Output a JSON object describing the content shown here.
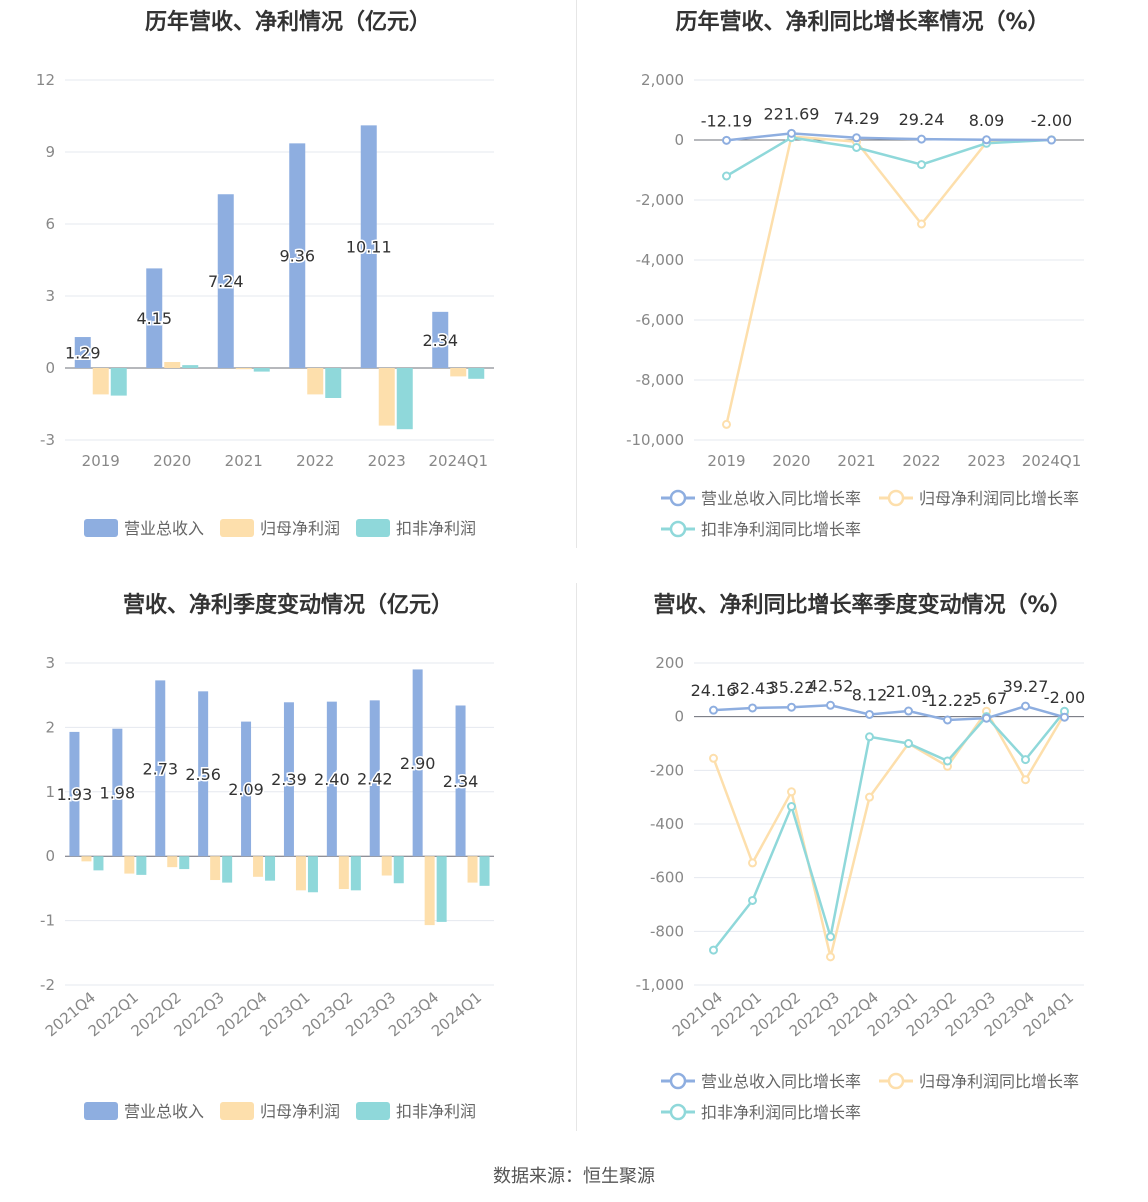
{
  "source_label": "数据来源：恒生聚源",
  "colors": {
    "revenue": "#8eaee0",
    "net_profit": "#fddfac",
    "deducted_profit": "#8fd8da",
    "axis": "#6e7079",
    "grid": "#e5e8ef",
    "label": "#333333",
    "tick": "#888888"
  },
  "chart_data": [
    {
      "id": "annual-values",
      "type": "bar",
      "title": "历年营收、净利情况（亿元）",
      "categories": [
        "2019",
        "2020",
        "2021",
        "2022",
        "2023",
        "2024Q1"
      ],
      "series": [
        {
          "name": "营业总收入",
          "values": [
            1.29,
            4.15,
            7.24,
            9.36,
            10.11,
            2.34
          ],
          "show_labels": true
        },
        {
          "name": "归母净利润",
          "values": [
            -1.1,
            0.25,
            -0.05,
            -1.1,
            -2.4,
            -0.35
          ]
        },
        {
          "name": "扣非净利润",
          "values": [
            -1.15,
            0.12,
            -0.15,
            -1.25,
            -2.55,
            -0.45
          ]
        }
      ],
      "data_labels": [
        "1.29",
        "4.15",
        "7.24",
        "9.36",
        "10.11",
        "2.34"
      ],
      "ylim": [
        -3,
        12
      ],
      "yticks": [
        -3,
        0,
        3,
        6,
        9,
        12
      ],
      "ytick_labels": [
        "-3",
        "0",
        "3",
        "6",
        "9",
        "12"
      ],
      "grid": true,
      "legend_position": "bottom-left"
    },
    {
      "id": "annual-growth",
      "type": "line",
      "title": "历年营收、净利同比增长率情况（%）",
      "categories": [
        "2019",
        "2020",
        "2021",
        "2022",
        "2023",
        "2024Q1"
      ],
      "series": [
        {
          "name": "营业总收入同比增长率",
          "values": [
            -12.19,
            221.69,
            74.29,
            29.24,
            8.09,
            -2.0
          ],
          "show_labels": true
        },
        {
          "name": "归母净利润同比增长率",
          "values": [
            -9480,
            120,
            -60,
            -2800,
            -80,
            10
          ]
        },
        {
          "name": "扣非净利润同比增长率",
          "values": [
            -1200,
            80,
            -250,
            -820,
            -110,
            5
          ]
        }
      ],
      "data_labels": [
        "-12.19",
        "221.69",
        "74.29",
        "29.24",
        "8.09",
        "-2.00"
      ],
      "ylim": [
        -10000,
        2000
      ],
      "yticks": [
        -10000,
        -8000,
        -6000,
        -4000,
        -2000,
        0,
        2000
      ],
      "ytick_labels": [
        "-10,000",
        "-8,000",
        "-6,000",
        "-4,000",
        "-2,000",
        "0",
        "2,000"
      ],
      "grid": true,
      "legend_position": "bottom"
    },
    {
      "id": "quarterly-values",
      "type": "bar",
      "title": "营收、净利季度变动情况（亿元）",
      "categories": [
        "2021Q4",
        "2022Q1",
        "2022Q2",
        "2022Q3",
        "2022Q4",
        "2023Q1",
        "2023Q2",
        "2023Q3",
        "2023Q4",
        "2024Q1"
      ],
      "series": [
        {
          "name": "营业总收入",
          "values": [
            1.93,
            1.98,
            2.73,
            2.56,
            2.09,
            2.39,
            2.4,
            2.42,
            2.9,
            2.34
          ],
          "show_labels": true
        },
        {
          "name": "归母净利润",
          "values": [
            -0.08,
            -0.27,
            -0.17,
            -0.37,
            -0.32,
            -0.53,
            -0.51,
            -0.3,
            -1.07,
            -0.41
          ]
        },
        {
          "name": "扣非净利润",
          "values": [
            -0.22,
            -0.29,
            -0.2,
            -0.41,
            -0.38,
            -0.56,
            -0.53,
            -0.42,
            -1.02,
            -0.46
          ]
        }
      ],
      "data_labels": [
        "1.93",
        "1.98",
        "2.73",
        "2.56",
        "2.09",
        "2.39",
        "2.40",
        "2.42",
        "2.90",
        "2.34"
      ],
      "ylim": [
        -2,
        3
      ],
      "yticks": [
        -2,
        -1,
        0,
        1,
        2,
        3
      ],
      "ytick_labels": [
        "-2",
        "-1",
        "0",
        "1",
        "2",
        "3"
      ],
      "grid": true,
      "legend_position": "bottom-left"
    },
    {
      "id": "quarterly-growth",
      "type": "line",
      "title": "营收、净利同比增长率季度变动情况（%）",
      "categories": [
        "2021Q4",
        "2022Q1",
        "2022Q2",
        "2022Q3",
        "2022Q4",
        "2023Q1",
        "2023Q2",
        "2023Q3",
        "2023Q4",
        "2024Q1"
      ],
      "series": [
        {
          "name": "营业总收入同比增长率",
          "values": [
            24.16,
            32.43,
            35.22,
            42.52,
            8.12,
            21.09,
            -12.22,
            -5.67,
            39.27,
            -2.0
          ],
          "show_labels": true
        },
        {
          "name": "归母净利润同比增长率",
          "values": [
            -155,
            -545,
            -280,
            -895,
            -300,
            -100,
            -185,
            20,
            -235,
            10
          ]
        },
        {
          "name": "扣非净利润同比增长率",
          "values": [
            -870,
            -685,
            -335,
            -820,
            -75,
            -100,
            -165,
            0,
            -160,
            20
          ]
        }
      ],
      "data_labels": [
        "24.16",
        "32.43",
        "35.22",
        "42.52",
        "8.12",
        "21.09",
        "-12.22",
        "-5.67",
        "39.27",
        "-2.00"
      ],
      "ylim": [
        -1000,
        200
      ],
      "yticks": [
        -1000,
        -800,
        -600,
        -400,
        -200,
        0,
        200
      ],
      "ytick_labels": [
        "-1,000",
        "-800",
        "-600",
        "-400",
        "-200",
        "0",
        "200"
      ],
      "grid": true,
      "legend_position": "bottom"
    }
  ]
}
